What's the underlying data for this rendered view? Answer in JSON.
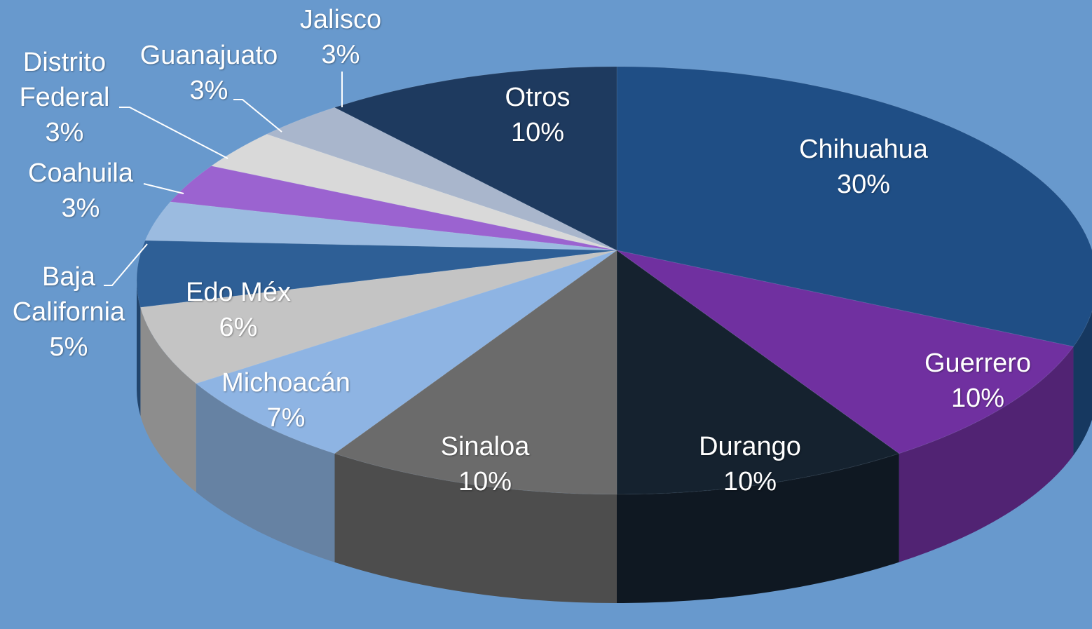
{
  "chart_data": {
    "type": "pie",
    "categories": [
      "Chihuahua",
      "Guerrero",
      "Durango",
      "Sinaloa",
      "Michoacán",
      "Edo Méx",
      "Baja California",
      "Coahuila",
      "Distrito Federal",
      "Guanajuato",
      "Jalisco",
      "Otros"
    ],
    "values": [
      30,
      10,
      10,
      10,
      7,
      6,
      5,
      3,
      3,
      3,
      3,
      10
    ],
    "value_labels": [
      "30%",
      "10%",
      "10%",
      "10%",
      "7%",
      "6%",
      "5%",
      "3%",
      "3%",
      "3%",
      "3%",
      "10%"
    ],
    "colors": [
      "#1f4e85",
      "#7030a0",
      "#15222f",
      "#6b6b6b",
      "#8eb4e3",
      "#c4c4c4",
      "#2e5f96",
      "#9bbbe0",
      "#9b63d0",
      "#d9d9d9",
      "#a9b6cc",
      "#1e3a5f"
    ]
  }
}
